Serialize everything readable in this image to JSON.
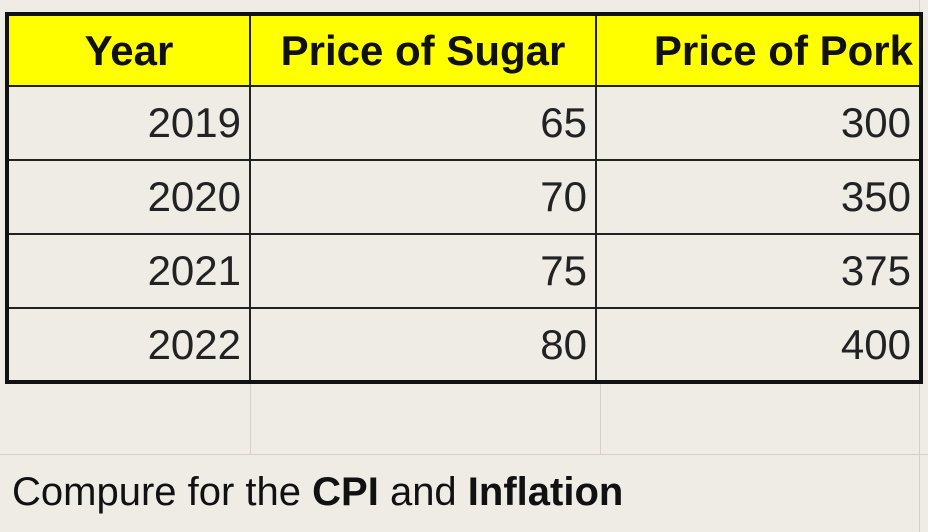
{
  "table": {
    "headers": [
      "Year",
      "Price of Sugar",
      "Price of Pork"
    ],
    "rows": [
      [
        "2019",
        "65",
        "300"
      ],
      [
        "2020",
        "70",
        "350"
      ],
      [
        "2021",
        "75",
        "375"
      ],
      [
        "2022",
        "80",
        "400"
      ]
    ],
    "header_background": "#ffff00"
  },
  "note": {
    "prefix": "Compure for the ",
    "term1": "CPI",
    "middle": " and ",
    "term2": "Inflation"
  }
}
